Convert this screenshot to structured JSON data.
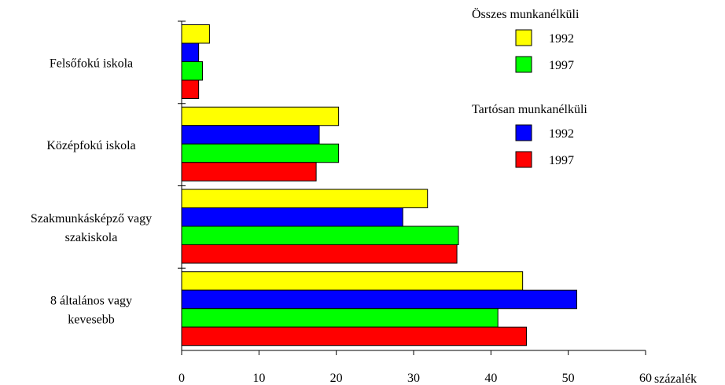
{
  "chart_data": {
    "type": "bar",
    "orientation": "horizontal",
    "title": "",
    "xlabel": "százalék",
    "ylabel": "",
    "xlim": [
      0,
      60
    ],
    "xticks": [
      0,
      10,
      20,
      30,
      40,
      50,
      60
    ],
    "categories": [
      [
        "Felsőfokú iskola"
      ],
      [
        "Középfokú iskola"
      ],
      [
        "Szakmunkásképző vagy",
        "szakiskola"
      ],
      [
        "8 általános vagy",
        "kevesebb"
      ]
    ],
    "series": [
      {
        "name": "1992",
        "group": "Összes munkanélküli",
        "color": "#ffff00",
        "values": [
          3.6,
          20.3,
          31.8,
          44.1
        ]
      },
      {
        "name": "1992",
        "group": "Tartósan munkanélküli",
        "color": "#0000ff",
        "values": [
          2.2,
          17.8,
          28.6,
          51.1
        ]
      },
      {
        "name": "1997",
        "group": "Összes munkanélküli",
        "color": "#00ff00",
        "values": [
          2.7,
          20.3,
          35.8,
          40.9
        ]
      },
      {
        "name": "1997",
        "group": "Tartósan munkanélküli",
        "color": "#ff0000",
        "values": [
          2.2,
          17.4,
          35.6,
          44.6
        ]
      }
    ],
    "legend": {
      "placement": "top-right",
      "groups": [
        {
          "title": "Összes munkanélküli",
          "entries": [
            {
              "label": "1992",
              "color": "#ffff00"
            },
            {
              "label": "1997",
              "color": "#00ff00"
            }
          ]
        },
        {
          "title": "Tartósan munkanélküli",
          "entries": [
            {
              "label": "1992",
              "color": "#0000ff"
            },
            {
              "label": "1997",
              "color": "#ff0000"
            }
          ]
        }
      ]
    },
    "grid": false
  }
}
